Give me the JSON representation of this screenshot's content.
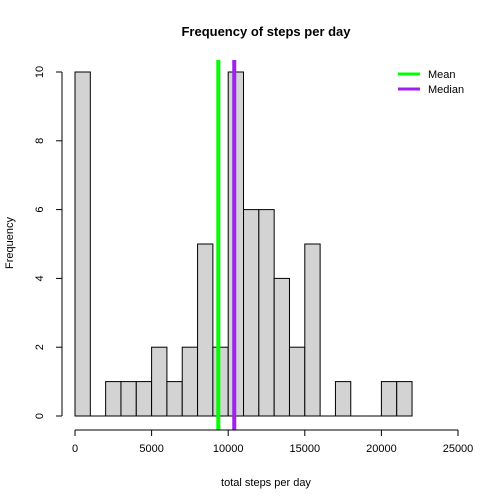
{
  "chart_data": {
    "type": "bar",
    "title": "Frequency of steps per day",
    "xlabel": "total steps per day",
    "ylabel": "Frequency",
    "xlim": [
      0,
      25000
    ],
    "ylim": [
      0,
      10
    ],
    "x_ticks": [
      0,
      5000,
      10000,
      15000,
      20000,
      25000
    ],
    "y_ticks": [
      0,
      2,
      4,
      6,
      8,
      10
    ],
    "bin_width": 1000,
    "bins": [
      {
        "start": 0,
        "end": 1000,
        "count": 10
      },
      {
        "start": 1000,
        "end": 2000,
        "count": 0
      },
      {
        "start": 2000,
        "end": 3000,
        "count": 1
      },
      {
        "start": 3000,
        "end": 4000,
        "count": 1
      },
      {
        "start": 4000,
        "end": 5000,
        "count": 1
      },
      {
        "start": 5000,
        "end": 6000,
        "count": 2
      },
      {
        "start": 6000,
        "end": 7000,
        "count": 1
      },
      {
        "start": 7000,
        "end": 8000,
        "count": 2
      },
      {
        "start": 8000,
        "end": 9000,
        "count": 5
      },
      {
        "start": 9000,
        "end": 10000,
        "count": 2
      },
      {
        "start": 10000,
        "end": 11000,
        "count": 10
      },
      {
        "start": 11000,
        "end": 12000,
        "count": 6
      },
      {
        "start": 12000,
        "end": 13000,
        "count": 6
      },
      {
        "start": 13000,
        "end": 14000,
        "count": 4
      },
      {
        "start": 14000,
        "end": 15000,
        "count": 2
      },
      {
        "start": 15000,
        "end": 16000,
        "count": 5
      },
      {
        "start": 16000,
        "end": 17000,
        "count": 0
      },
      {
        "start": 17000,
        "end": 18000,
        "count": 1
      },
      {
        "start": 18000,
        "end": 19000,
        "count": 0
      },
      {
        "start": 19000,
        "end": 20000,
        "count": 0
      },
      {
        "start": 20000,
        "end": 21000,
        "count": 1
      },
      {
        "start": 21000,
        "end": 22000,
        "count": 1
      }
    ],
    "bar_color": "#d3d3d3",
    "reference_lines": [
      {
        "name": "Mean",
        "value": 9354,
        "color": "#00ff00"
      },
      {
        "name": "Median",
        "value": 10395,
        "color": "#a020f0"
      }
    ],
    "legend_position": "top-right"
  }
}
